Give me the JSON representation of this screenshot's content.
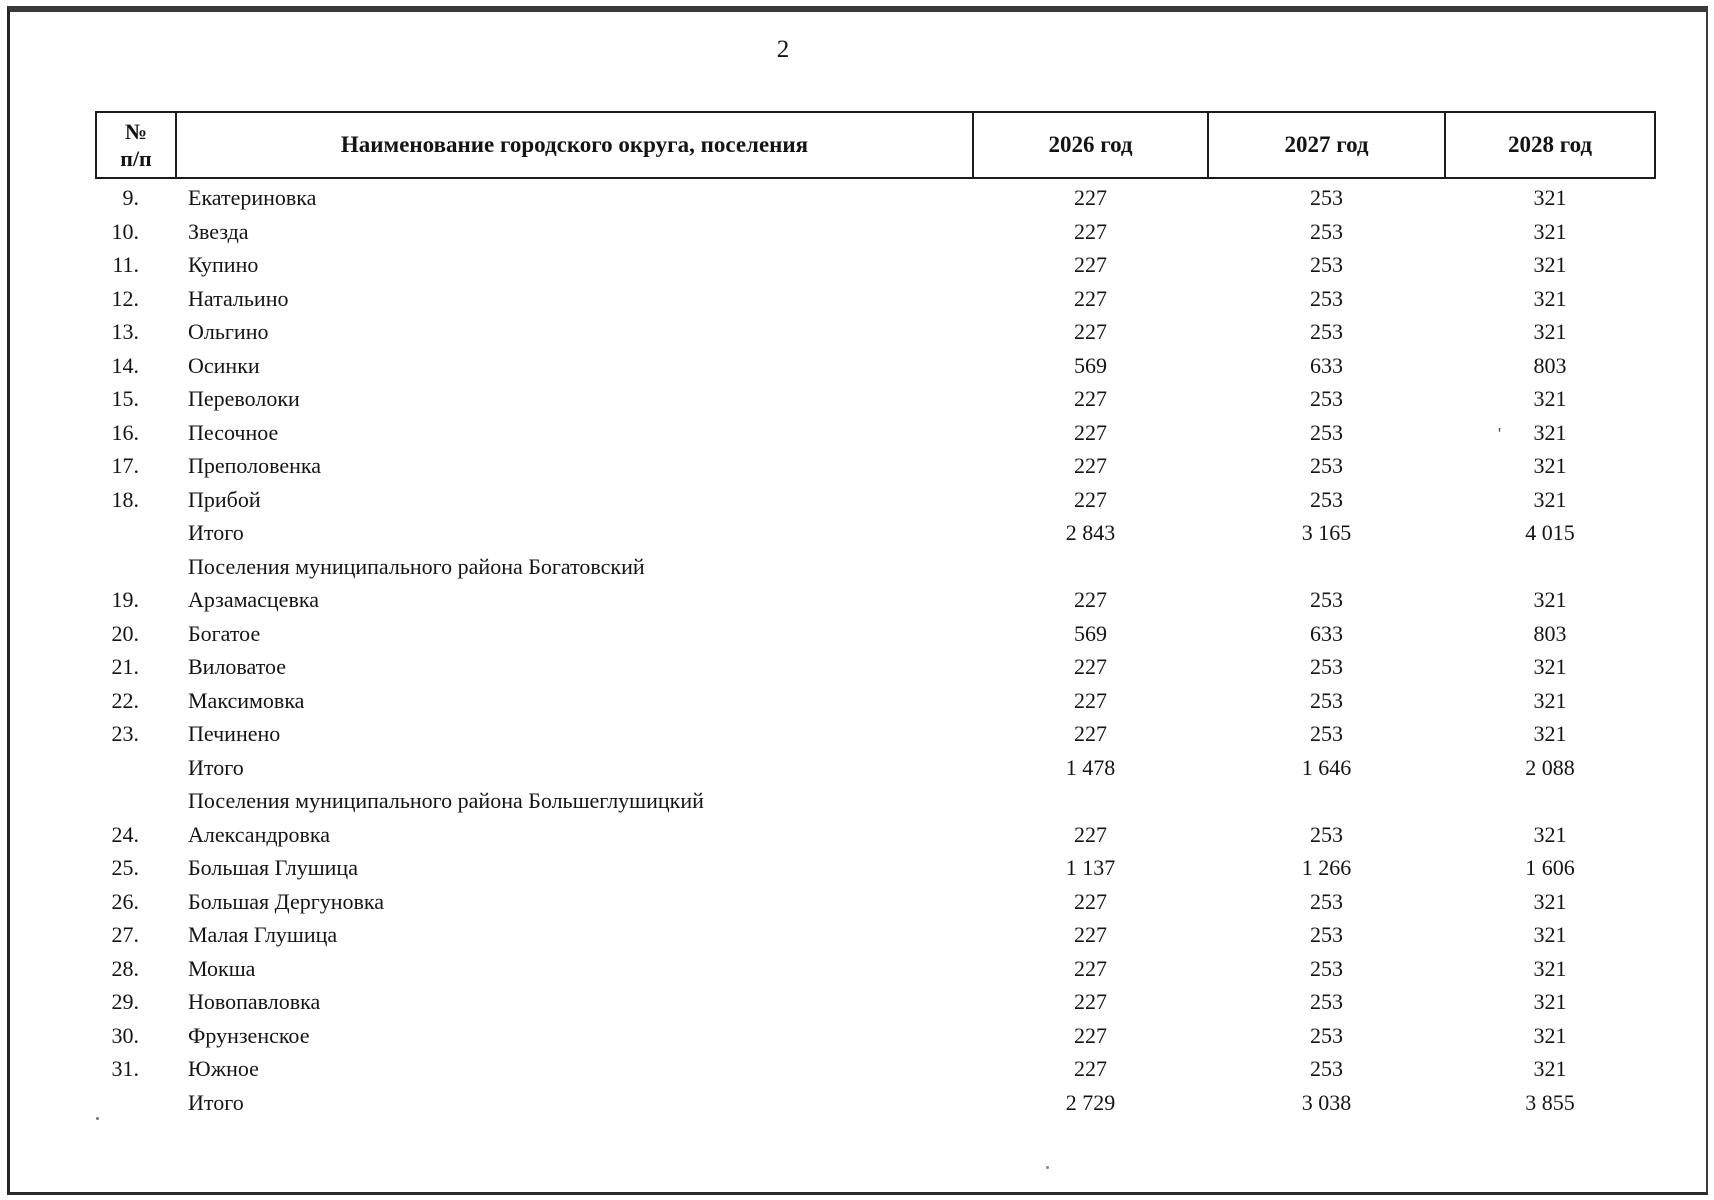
{
  "page": {
    "number": "2"
  },
  "colors": {
    "background": "#ffffff",
    "text": "#141414",
    "table_border": "#1c1c1c",
    "scan_frame": "#3a3a3a"
  },
  "table": {
    "header": {
      "num_line1": "№",
      "num_line2": "п/п",
      "name": "Наименование городского округа, поселения",
      "y2026": "2026 год",
      "y2027": "2027 год",
      "y2028": "2028 год"
    },
    "rows": [
      {
        "type": "data",
        "num": "9.",
        "name": "Екатериновка",
        "y2026": "227",
        "y2027": "253",
        "y2028": "321"
      },
      {
        "type": "data",
        "num": "10.",
        "name": "Звезда",
        "y2026": "227",
        "y2027": "253",
        "y2028": "321"
      },
      {
        "type": "data",
        "num": "11.",
        "name": "Купино",
        "y2026": "227",
        "y2027": "253",
        "y2028": "321"
      },
      {
        "type": "data",
        "num": "12.",
        "name": "Натальино",
        "y2026": "227",
        "y2027": "253",
        "y2028": "321"
      },
      {
        "type": "data",
        "num": "13.",
        "name": "Ольгино",
        "y2026": "227",
        "y2027": "253",
        "y2028": "321"
      },
      {
        "type": "data",
        "num": "14.",
        "name": "Осинки",
        "y2026": "569",
        "y2027": "633",
        "y2028": "803"
      },
      {
        "type": "data",
        "num": "15.",
        "name": "Переволоки",
        "y2026": "227",
        "y2027": "253",
        "y2028": "321"
      },
      {
        "type": "data",
        "num": "16.",
        "name": "Песочное",
        "y2026": "227",
        "y2027": "253",
        "y2028": "321"
      },
      {
        "type": "data",
        "num": "17.",
        "name": "Преполовенка",
        "y2026": "227",
        "y2027": "253",
        "y2028": "321"
      },
      {
        "type": "data",
        "num": "18.",
        "name": "Прибой",
        "y2026": "227",
        "y2027": "253",
        "y2028": "321"
      },
      {
        "type": "total",
        "num": "",
        "name": "Итого",
        "y2026": "2 843",
        "y2027": "3 165",
        "y2028": "4 015"
      },
      {
        "type": "section",
        "num": "",
        "name": "Поселения муниципального района Богатовский",
        "y2026": "",
        "y2027": "",
        "y2028": ""
      },
      {
        "type": "data",
        "num": "19.",
        "name": "Арзамасцевка",
        "y2026": "227",
        "y2027": "253",
        "y2028": "321"
      },
      {
        "type": "data",
        "num": "20.",
        "name": "Богатое",
        "y2026": "569",
        "y2027": "633",
        "y2028": "803"
      },
      {
        "type": "data",
        "num": "21.",
        "name": "Виловатое",
        "y2026": "227",
        "y2027": "253",
        "y2028": "321"
      },
      {
        "type": "data",
        "num": "22.",
        "name": "Максимовка",
        "y2026": "227",
        "y2027": "253",
        "y2028": "321"
      },
      {
        "type": "data",
        "num": "23.",
        "name": "Печинено",
        "y2026": "227",
        "y2027": "253",
        "y2028": "321"
      },
      {
        "type": "total",
        "num": "",
        "name": "Итого",
        "y2026": "1 478",
        "y2027": "1 646",
        "y2028": "2 088"
      },
      {
        "type": "section",
        "num": "",
        "name": "Поселения муниципального района Большеглушицкий",
        "y2026": "",
        "y2027": "",
        "y2028": ""
      },
      {
        "type": "data",
        "num": "24.",
        "name": "Александровка",
        "y2026": "227",
        "y2027": "253",
        "y2028": "321"
      },
      {
        "type": "data",
        "num": "25.",
        "name": "Большая Глушица",
        "y2026": "1 137",
        "y2027": "1 266",
        "y2028": "1 606"
      },
      {
        "type": "data",
        "num": "26.",
        "name": "Большая Дергуновка",
        "y2026": "227",
        "y2027": "253",
        "y2028": "321"
      },
      {
        "type": "data",
        "num": "27.",
        "name": "Малая Глушица",
        "y2026": "227",
        "y2027": "253",
        "y2028": "321"
      },
      {
        "type": "data",
        "num": "28.",
        "name": "Мокша",
        "y2026": "227",
        "y2027": "253",
        "y2028": "321"
      },
      {
        "type": "data",
        "num": "29.",
        "name": "Новопавловка",
        "y2026": "227",
        "y2027": "253",
        "y2028": "321"
      },
      {
        "type": "data",
        "num": "30.",
        "name": "Фрунзенское",
        "y2026": "227",
        "y2027": "253",
        "y2028": "321"
      },
      {
        "type": "data",
        "num": "31.",
        "name": "Южное",
        "y2026": "227",
        "y2027": "253",
        "y2028": "321"
      },
      {
        "type": "total",
        "num": "",
        "name": "Итого",
        "y2026": "2 729",
        "y2027": "3 038",
        "y2028": "3 855"
      }
    ],
    "artifacts": {
      "apostrophe_mark": "'"
    }
  }
}
